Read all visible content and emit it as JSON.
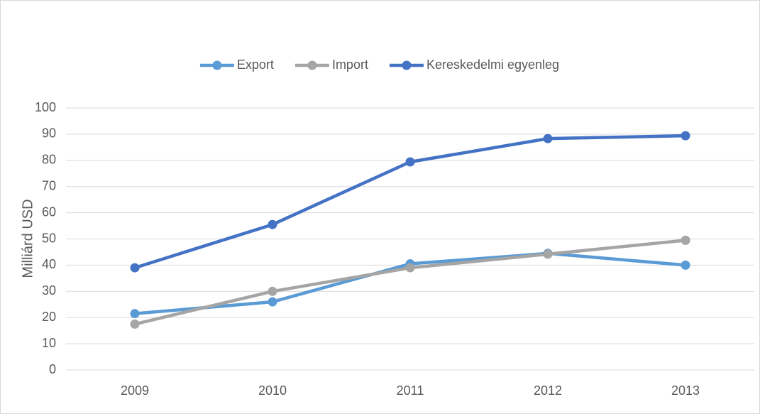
{
  "chart_data": {
    "type": "line",
    "y_label": "Milliárd USD",
    "categories": [
      "2009",
      "2010",
      "2011",
      "2012",
      "2013"
    ],
    "series": [
      {
        "name": "Export",
        "color": "#5b9bd5",
        "values": [
          21.5,
          26,
          40.5,
          44.5,
          40
        ]
      },
      {
        "name": "Import",
        "color": "#a5a5a5",
        "values": [
          17.5,
          30,
          39,
          44.2,
          49.5
        ]
      },
      {
        "name": "Kereskedelmi egyenleg",
        "color": "#4472c4",
        "values": [
          39,
          55.5,
          79.4,
          88.3,
          89.4
        ]
      }
    ],
    "ylim": [
      0,
      100
    ],
    "yticks": [
      0,
      10,
      20,
      30,
      40,
      50,
      60,
      70,
      80,
      90,
      100
    ],
    "grid": true,
    "legend": "top"
  }
}
